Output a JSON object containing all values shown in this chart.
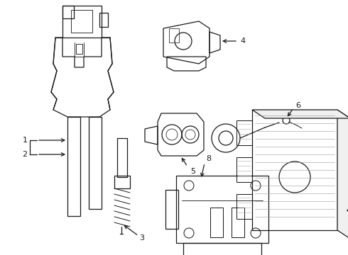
{
  "background_color": "#ffffff",
  "line_color": "#1a1a1a",
  "label_color": "#000000",
  "figsize": [
    4.9,
    3.6
  ],
  "dpi": 100,
  "font_size": 8,
  "lw": 0.9
}
